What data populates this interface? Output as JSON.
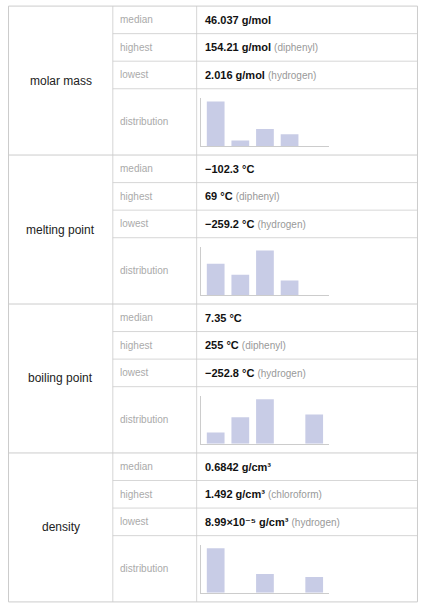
{
  "chart_data": {
    "type": "table",
    "row_labels": [
      "median",
      "highest",
      "lowest",
      "distribution"
    ],
    "properties": [
      {
        "name": "molar mass",
        "stats": [
          {
            "text": "46.037 g/mol"
          },
          {
            "text": "154.21 g/mol",
            "note": "(diphenyl)"
          },
          {
            "text": "2.016 g/mol",
            "note": "(hydrogen)"
          }
        ],
        "distribution": {
          "type": "bar",
          "values": [
            5.0,
            0.6,
            1.9,
            1.3,
            0.0
          ],
          "ylim": [
            0,
            5.4
          ],
          "tick_labels": false,
          "color": "#c8cce6"
        }
      },
      {
        "name": "melting point",
        "stats": [
          {
            "text": "−102.3 °C"
          },
          {
            "text": "69 °C",
            "note": "(diphenyl)"
          },
          {
            "text": "−259.2 °C",
            "note": "(hydrogen)"
          }
        ],
        "distribution": {
          "type": "bar",
          "values": [
            2.8,
            1.8,
            4.0,
            1.3,
            0.0
          ],
          "ylim": [
            0,
            4.32
          ],
          "tick_labels": false,
          "color": "#c8cce6"
        }
      },
      {
        "name": "boiling point",
        "stats": [
          {
            "text": "7.35 °C"
          },
          {
            "text": "255 °C",
            "note": "(diphenyl)"
          },
          {
            "text": "−252.8 °C",
            "note": "(hydrogen)"
          }
        ],
        "distribution": {
          "type": "bar",
          "values": [
            0.9,
            2.1,
            3.5,
            0.0,
            2.3
          ],
          "ylim": [
            0,
            3.78
          ],
          "tick_labels": false,
          "color": "#c8cce6"
        }
      },
      {
        "name": "density",
        "stats": [
          {
            "text": "0.6842 g/cm³"
          },
          {
            "text": "1.492 g/cm³",
            "note": "(chloroform)"
          },
          {
            "text": "8.99×10⁻⁵ g/cm³",
            "note": "(hydrogen)"
          }
        ],
        "distribution": {
          "type": "bar",
          "values": [
            4.5,
            0.0,
            1.9,
            0.0,
            1.6
          ],
          "ylim": [
            0,
            4.86
          ],
          "tick_labels": false,
          "color": "#c8cce6"
        }
      }
    ]
  }
}
